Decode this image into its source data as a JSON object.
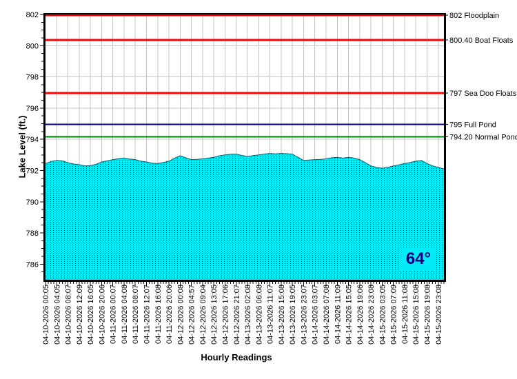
{
  "chart_data": {
    "type": "area",
    "title": "",
    "xlabel": "Hourly Readings",
    "ylabel": "Lake Level (ft.)",
    "ylim": [
      785,
      802
    ],
    "y_ticks": [
      786,
      788,
      790,
      792,
      794,
      796,
      798,
      800,
      802
    ],
    "grid": true,
    "x_tick_labels": [
      "04-10-2026 00:05",
      "04-10-2026 04:05",
      "04-10-2026 08:07",
      "04-10-2026 12:09",
      "04-10-2026 16:05",
      "04-10-2026 20:06",
      "04-11-2026 00:07",
      "04-11-2026 04:08",
      "04-11-2026 08:07",
      "04-11-2026 12:07",
      "04-11-2026 16:08",
      "04-11-2026 20:06",
      "04-12-2026 00:08",
      "04-12-2026 04:57",
      "04-12-2026 09:04",
      "04-12-2026 13:05",
      "04-12-2026 17:06",
      "04-12-2026 21:07",
      "04-13-2026 02:08",
      "04-13-2026 06:08",
      "04-13-2026 11:07",
      "04-13-2026 15:08",
      "04-13-2026 19:05",
      "04-13-2026 23:07",
      "04-14-2026 03:07",
      "04-14-2026 07:08",
      "04-14-2026 11:09",
      "04-14-2026 15:05",
      "04-14-2026 19:06",
      "04-14-2026 23:08",
      "04-15-2026 03:05",
      "04-15-2026 07:09",
      "04-15-2026 11:08",
      "04-15-2026 15:08",
      "04-15-2026 19:08",
      "04-15-2026 23:08"
    ],
    "series": [
      {
        "name": "Lake Level",
        "values": [
          792.45,
          792.58,
          792.65,
          792.62,
          792.5,
          792.42,
          792.38,
          792.3,
          792.32,
          792.4,
          792.55,
          792.62,
          792.7,
          792.76,
          792.8,
          792.74,
          792.7,
          792.6,
          792.55,
          792.48,
          792.45,
          792.52,
          792.6,
          792.8,
          792.95,
          792.82,
          792.7,
          792.72,
          792.75,
          792.8,
          792.85,
          792.95,
          793.0,
          793.05,
          793.05,
          792.97,
          792.9,
          792.96,
          793.0,
          793.06,
          793.1,
          793.07,
          793.1,
          793.08,
          793.05,
          792.85,
          792.65,
          792.68,
          792.7,
          792.72,
          792.75,
          792.82,
          792.85,
          792.8,
          792.85,
          792.8,
          792.7,
          792.5,
          792.3,
          792.2,
          792.15,
          792.2,
          792.3,
          792.37,
          792.45,
          792.52,
          792.6,
          792.65,
          792.45,
          792.3,
          792.2,
          792.1
        ]
      }
    ],
    "annotations": [
      {
        "value": 802,
        "label": "802 Floodplain",
        "color": "#ff0000",
        "width": 3
      },
      {
        "value": 800.4,
        "label": "800.40 Boat Floats",
        "color": "#ff0000",
        "width": 3
      },
      {
        "value": 797,
        "label": "797 Sea Doo Floats",
        "color": "#ff0000",
        "width": 3
      },
      {
        "value": 795,
        "label": "795 Full Pond",
        "color": "#000080",
        "width": 2
      },
      {
        "value": 794.2,
        "label": "794.20 Normal Pond",
        "color": "#008000",
        "width": 2
      }
    ],
    "temperature_label": "64°",
    "colors": {
      "area_fill": "#00e9f2",
      "area_dot": "#000000",
      "area_edge": "#0b4d5c",
      "grid": "#c4c4c4",
      "axis": "#000000",
      "temp_text": "#000080",
      "temp_bg": "#00ecf6"
    }
  }
}
